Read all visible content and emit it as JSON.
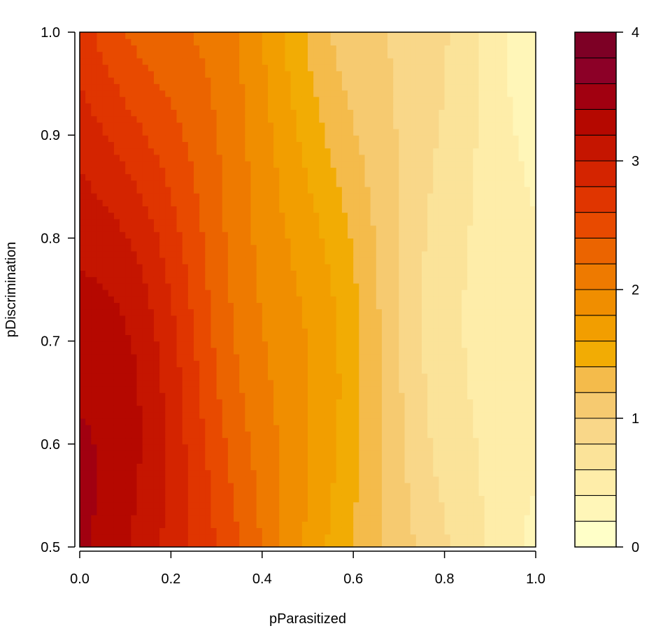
{
  "chart_data": {
    "type": "heatmap",
    "subtype": "filled-contour",
    "title": "",
    "xlabel": "pParasitized",
    "ylabel": "pDiscrimination",
    "xlim": [
      0.0,
      1.0
    ],
    "ylim": [
      0.5,
      1.0
    ],
    "x_ticks": [
      "0.0",
      "0.2",
      "0.4",
      "0.6",
      "0.8",
      "1.0"
    ],
    "y_ticks": [
      "0.5",
      "0.6",
      "0.7",
      "0.8",
      "0.9",
      "1.0"
    ],
    "colorbar": {
      "range": [
        0,
        4
      ],
      "ticks": [
        "0",
        "1",
        "2",
        "3",
        "4"
      ],
      "levels": [
        0.0,
        0.2,
        0.4,
        0.6,
        0.8,
        1.0,
        1.2,
        1.4,
        1.6,
        1.8,
        2.0,
        2.2,
        2.4,
        2.6,
        2.8,
        3.0,
        3.2,
        3.4,
        3.6,
        3.8,
        4.0
      ],
      "colors": [
        "#FFFFC8",
        "#FFF6B8",
        "#FEEDA9",
        "#FBE399",
        "#F9D789",
        "#F6CA70",
        "#F4BB4B",
        "#F2AC04",
        "#F29E00",
        "#F08E00",
        "#EE7A00",
        "#EB6400",
        "#E84A00",
        "#E03500",
        "#D42400",
        "#C51500",
        "#B50800",
        "#A10010",
        "#8C0027",
        "#7D0025"
      ]
    },
    "grid": false,
    "legend": "colorbar-right",
    "z_description": "value decreases with pParasitized; highest near pParasitized=0, pDiscrimination=0.5–0.6"
  }
}
